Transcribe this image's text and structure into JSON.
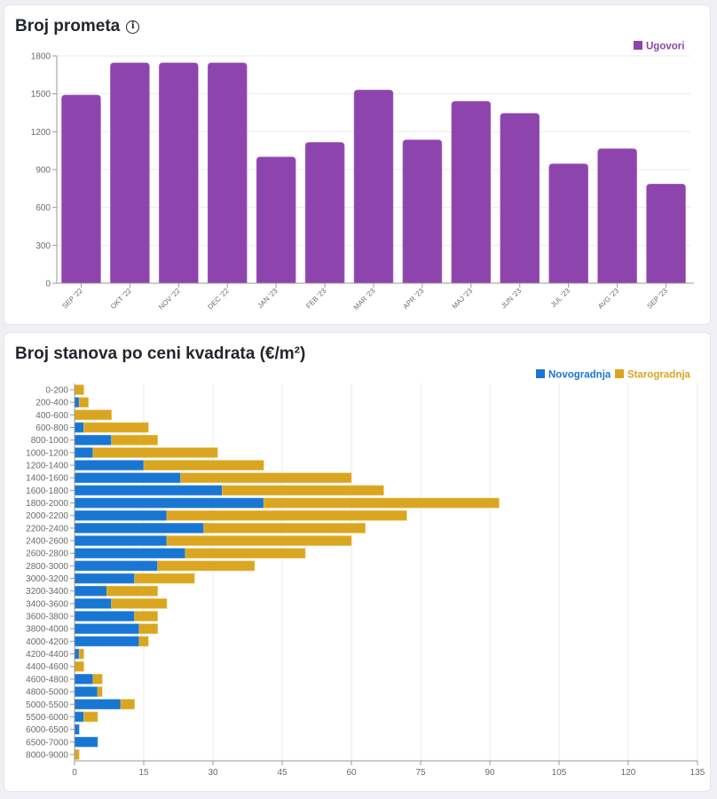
{
  "cards": {
    "prometa": {
      "title": "Broj prometa",
      "info_icon": "info-circle-icon",
      "info_glyph": "i"
    },
    "cene": {
      "title": "Broj stanova po ceni kvadrata (€/m²)"
    }
  },
  "chart_data": [
    {
      "type": "bar",
      "orientation": "vertical",
      "title": "Broj prometa",
      "xlabel": "",
      "ylabel": "",
      "categories": [
        "SEP '22",
        "OKT '22",
        "NOV '22",
        "DEC '22",
        "JAN '23",
        "FEB '23",
        "MAR '23",
        "APR '23",
        "MAJ '23",
        "JUN '23",
        "JUL '23",
        "AVG '23",
        "SEP '23"
      ],
      "series": [
        {
          "name": "Ugovori",
          "color": "#8e44ad",
          "values": [
            1490,
            1745,
            1745,
            1745,
            1000,
            1115,
            1530,
            1135,
            1440,
            1345,
            945,
            1065,
            785
          ]
        }
      ],
      "ylim": [
        0,
        1800
      ],
      "yticks": [
        "0",
        "300",
        "600",
        "900",
        "1200",
        "1500",
        "1800"
      ],
      "grid": true,
      "legend": "top-right"
    },
    {
      "type": "bar",
      "orientation": "horizontal",
      "stacked": true,
      "title": "Broj stanova po ceni kvadrata (€/m²)",
      "xlabel": "",
      "ylabel": "",
      "categories": [
        "0-200",
        "200-400",
        "400-600",
        "600-800",
        "800-1000",
        "1000-1200",
        "1200-1400",
        "1400-1600",
        "1600-1800",
        "1800-2000",
        "2000-2200",
        "2200-2400",
        "2400-2600",
        "2600-2800",
        "2800-3000",
        "3000-3200",
        "3200-3400",
        "3400-3600",
        "3600-3800",
        "3800-4000",
        "4000-4200",
        "4200-4400",
        "4400-4600",
        "4600-4800",
        "4800-5000",
        "5000-5500",
        "5500-6000",
        "6000-6500",
        "6500-7000",
        "8000-9000"
      ],
      "series": [
        {
          "name": "Novogradnja",
          "color": "#1976d2",
          "values": [
            0,
            1,
            0,
            2,
            8,
            4,
            15,
            23,
            32,
            41,
            20,
            28,
            20,
            24,
            18,
            13,
            7,
            8,
            13,
            14,
            14,
            1,
            0,
            4,
            5,
            10,
            2,
            1,
            5,
            0
          ]
        },
        {
          "name": "Starogradnja",
          "color": "#daa520",
          "values": [
            2,
            2,
            8,
            14,
            10,
            27,
            26,
            37,
            35,
            51,
            52,
            35,
            40,
            26,
            21,
            13,
            11,
            12,
            5,
            4,
            2,
            1,
            2,
            2,
            1,
            3,
            3,
            0,
            0,
            1
          ]
        }
      ],
      "xlim": [
        0,
        135
      ],
      "xticks": [
        "0",
        "15",
        "30",
        "45",
        "60",
        "75",
        "90",
        "105",
        "120",
        "135"
      ],
      "grid": true,
      "legend": "top-right"
    }
  ]
}
